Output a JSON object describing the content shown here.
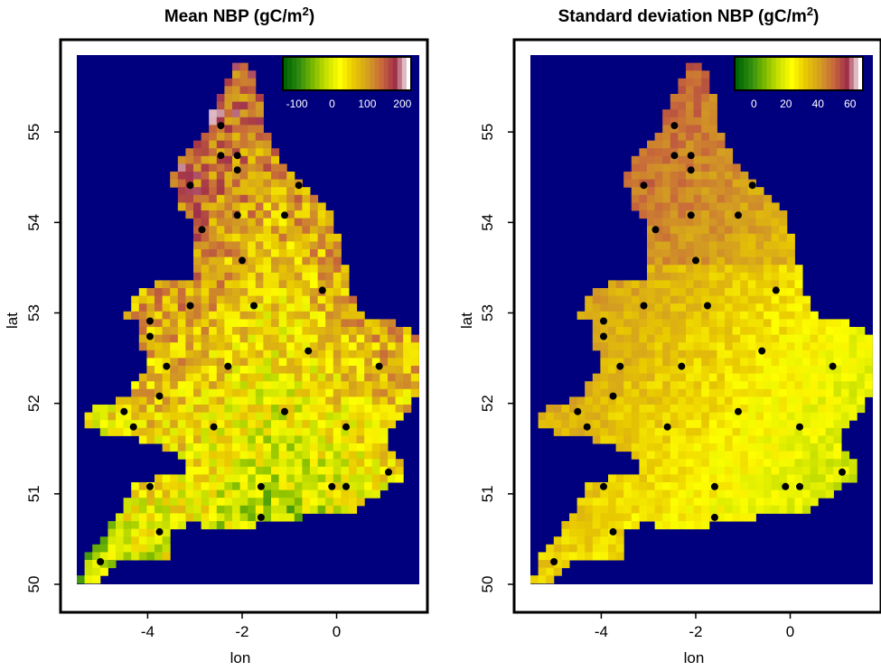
{
  "colors": {
    "sea": "#00007f",
    "map_palette": [
      "#006400",
      "#2e8b10",
      "#7ab800",
      "#c8e000",
      "#ffff00",
      "#e8c800",
      "#d4a020",
      "#c86a3a",
      "#a0304a",
      "#ffffff"
    ],
    "station": "#000000"
  },
  "stations": [
    {
      "lon": -2.45,
      "lat": 55.07
    },
    {
      "lon": -2.45,
      "lat": 54.74
    },
    {
      "lon": -2.1,
      "lat": 54.74
    },
    {
      "lon": -2.1,
      "lat": 54.58
    },
    {
      "lon": -3.1,
      "lat": 54.41
    },
    {
      "lon": -0.8,
      "lat": 54.41
    },
    {
      "lon": -2.1,
      "lat": 54.08
    },
    {
      "lon": -1.1,
      "lat": 54.08
    },
    {
      "lon": -2.85,
      "lat": 53.92
    },
    {
      "lon": -2.0,
      "lat": 53.58
    },
    {
      "lon": -0.3,
      "lat": 53.25
    },
    {
      "lon": -3.1,
      "lat": 53.08
    },
    {
      "lon": -1.75,
      "lat": 53.08
    },
    {
      "lon": -3.95,
      "lat": 52.91
    },
    {
      "lon": -3.95,
      "lat": 52.74
    },
    {
      "lon": -0.6,
      "lat": 52.58
    },
    {
      "lon": -3.6,
      "lat": 52.41
    },
    {
      "lon": -2.3,
      "lat": 52.41
    },
    {
      "lon": 0.9,
      "lat": 52.41
    },
    {
      "lon": -3.75,
      "lat": 52.08
    },
    {
      "lon": -4.5,
      "lat": 51.91
    },
    {
      "lon": -1.1,
      "lat": 51.91
    },
    {
      "lon": -4.3,
      "lat": 51.74
    },
    {
      "lon": -2.6,
      "lat": 51.74
    },
    {
      "lon": 0.2,
      "lat": 51.74
    },
    {
      "lon": 1.1,
      "lat": 51.24
    },
    {
      "lon": -3.95,
      "lat": 51.08
    },
    {
      "lon": -1.6,
      "lat": 51.08
    },
    {
      "lon": -0.1,
      "lat": 51.08
    },
    {
      "lon": 0.2,
      "lat": 51.08
    },
    {
      "lon": -1.6,
      "lat": 50.74
    },
    {
      "lon": -3.75,
      "lat": 50.58
    },
    {
      "lon": -5.0,
      "lat": 50.25
    }
  ],
  "chart_data": [
    {
      "type": "heatmap",
      "title": "Mean NBP (gC/m",
      "title_sup": "2",
      "title_tail": ")",
      "xlabel": "lon",
      "ylabel": "lat",
      "xlim": [
        -5.5,
        1.75
      ],
      "ylim": [
        50.0,
        55.85
      ],
      "xticks": [
        -4,
        -2,
        0
      ],
      "xtick_labels": [
        "-4",
        "-2",
        "0"
      ],
      "yticks": [
        50,
        51,
        52,
        53,
        54,
        55
      ],
      "ytick_labels": [
        "50",
        "51",
        "52",
        "53",
        "54",
        "55"
      ],
      "colorbar": {
        "min": -140,
        "max": 225,
        "ticks": [
          -100,
          0,
          100,
          200
        ],
        "tick_labels": [
          "-100",
          "0",
          "100",
          "200"
        ],
        "position": "top-right"
      },
      "value_range": [
        -130,
        220
      ],
      "field": "mean",
      "grid": false
    },
    {
      "type": "heatmap",
      "title": "Standard deviation NBP (gC/m",
      "title_sup": "2",
      "title_tail": ")",
      "xlabel": "lon",
      "ylabel": "lat",
      "xlim": [
        -5.5,
        1.75
      ],
      "ylim": [
        50.0,
        55.85
      ],
      "xticks": [
        -4,
        -2,
        0
      ],
      "xtick_labels": [
        "-4",
        "-2",
        "0"
      ],
      "yticks": [
        50,
        51,
        52,
        53,
        54,
        55
      ],
      "ytick_labels": [
        "50",
        "51",
        "52",
        "53",
        "54",
        "55"
      ],
      "colorbar": {
        "min": -12,
        "max": 68,
        "ticks": [
          0,
          20,
          40,
          60
        ],
        "tick_labels": [
          "0",
          "20",
          "40",
          "60"
        ],
        "position": "top-right"
      },
      "value_range": [
        0,
        65
      ],
      "field": "sd",
      "grid": false
    }
  ]
}
